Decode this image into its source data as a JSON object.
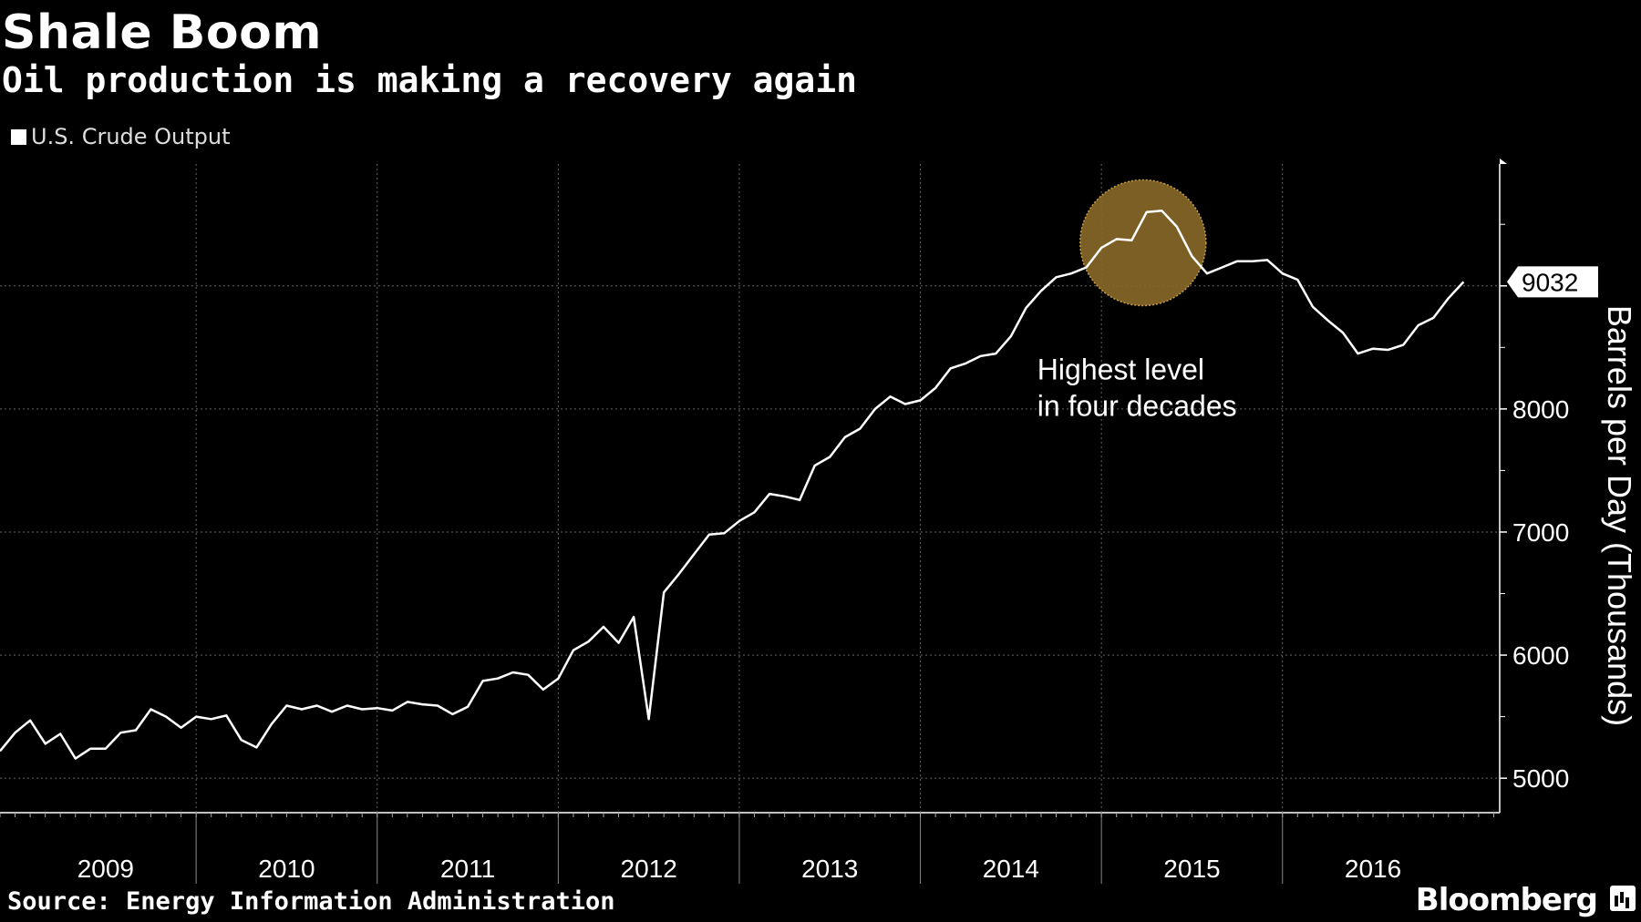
{
  "header": {
    "title": "Shale Boom",
    "subtitle": "Oil production is making a recovery again"
  },
  "legend": {
    "label": "U.S. Crude Output",
    "color": "#ffffff"
  },
  "footer": {
    "source": "Source: Energy Information Administration",
    "brand": "Bloomberg"
  },
  "colors": {
    "background": "#000000",
    "line": "#ffffff",
    "highlight": "#8a6a2a",
    "grid": "#666666"
  },
  "chart_data": {
    "type": "line",
    "title": "Shale Boom",
    "subtitle": "Oil production is making a recovery again",
    "ylabel": "Barrels per Day (Thousands)",
    "y_axis_position": "right",
    "ylim": [
      4720,
      9990
    ],
    "yticks": [
      5000,
      6000,
      7000,
      8000,
      9000
    ],
    "ytick_labels": [
      "5000",
      "6000",
      "7000",
      "8000"
    ],
    "x_start": "2008-12",
    "x_end": "2016-10",
    "x_categories": [
      "2009",
      "2010",
      "2011",
      "2012",
      "2013",
      "2014",
      "2015",
      "2016"
    ],
    "grid": true,
    "legend_position": "top-left",
    "last_value_label": "9032",
    "annotation": {
      "text_lines": [
        "Highest level",
        "in four decades"
      ],
      "x": "2015-04",
      "y": 9350
    },
    "series": [
      {
        "name": "U.S. Crude Output",
        "monthly": [
          5220,
          5370,
          5470,
          5280,
          5360,
          5160,
          5240,
          5240,
          5370,
          5390,
          5560,
          5500,
          5410,
          5500,
          5480,
          5510,
          5310,
          5250,
          5440,
          5590,
          5560,
          5590,
          5540,
          5590,
          5560,
          5570,
          5550,
          5620,
          5600,
          5590,
          5520,
          5580,
          5790,
          5810,
          5860,
          5840,
          5720,
          5810,
          6040,
          6110,
          6230,
          6100,
          6310,
          5480,
          6510,
          6660,
          6820,
          6980,
          6990,
          7090,
          7160,
          7310,
          7290,
          7260,
          7540,
          7610,
          7770,
          7840,
          8000,
          8100,
          8040,
          8070,
          8170,
          8330,
          8370,
          8430,
          8450,
          8590,
          8820,
          8960,
          9070,
          9100,
          9150,
          9310,
          9380,
          9370,
          9600,
          9610,
          9480,
          9240,
          9100,
          9150,
          9200,
          9200,
          9210,
          9100,
          9050,
          8830,
          8720,
          8620,
          8450,
          8490,
          8480,
          8520,
          8680,
          8740,
          8900,
          9032
        ]
      }
    ]
  }
}
